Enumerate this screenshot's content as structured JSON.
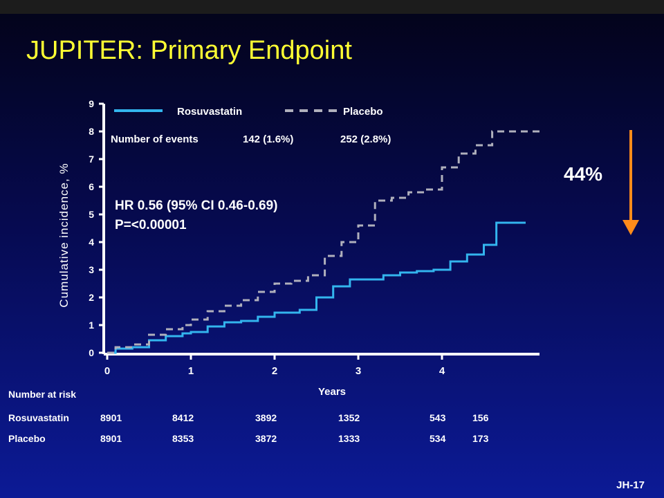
{
  "slide": {
    "title": "JUPITER: Primary Endpoint",
    "slide_id": "JH-17"
  },
  "colors": {
    "rosuvastatin": "#33b5ee",
    "placebo": "#b0b0bc",
    "axis": "#ffffff",
    "title": "#ffff33",
    "arrow": "#ff8c1a"
  },
  "chart_data": {
    "type": "line",
    "title": "",
    "xlabel": "Years",
    "ylabel": "Cumulative incidence, %",
    "xlim": [
      0,
      5
    ],
    "ylim": [
      0,
      9
    ],
    "x_ticks": [
      0,
      1,
      2,
      3,
      4
    ],
    "y_ticks": [
      0,
      1,
      2,
      3,
      4,
      5,
      6,
      7,
      8,
      9
    ],
    "grid": false,
    "legend_position": "top",
    "legend": {
      "rosuvastatin": "Rosuvastatin",
      "placebo": "Placebo"
    },
    "events": {
      "label": "Number of events",
      "rosuvastatin": "142 (1.6%)",
      "placebo": "252 (2.8%)"
    },
    "hr_text": "HR 0.56 (95% CI 0.46-0.69)",
    "p_text": "P=<0.00001",
    "reduction_label": "44%",
    "series": [
      {
        "name": "Rosuvastatin",
        "style": "solid",
        "points": [
          [
            0,
            0
          ],
          [
            0.1,
            0.15
          ],
          [
            0.3,
            0.2
          ],
          [
            0.5,
            0.45
          ],
          [
            0.7,
            0.6
          ],
          [
            0.9,
            0.7
          ],
          [
            1.0,
            0.75
          ],
          [
            1.2,
            0.95
          ],
          [
            1.4,
            1.1
          ],
          [
            1.6,
            1.15
          ],
          [
            1.8,
            1.3
          ],
          [
            2.0,
            1.45
          ],
          [
            2.1,
            1.45
          ],
          [
            2.3,
            1.55
          ],
          [
            2.5,
            2.0
          ],
          [
            2.7,
            2.4
          ],
          [
            2.9,
            2.65
          ],
          [
            3.1,
            2.65
          ],
          [
            3.3,
            2.8
          ],
          [
            3.5,
            2.9
          ],
          [
            3.7,
            2.95
          ],
          [
            3.9,
            3.0
          ],
          [
            4.1,
            3.3
          ],
          [
            4.3,
            3.55
          ],
          [
            4.5,
            3.9
          ],
          [
            4.65,
            4.7
          ],
          [
            5.0,
            4.7
          ]
        ]
      },
      {
        "name": "Placebo",
        "style": "dashed",
        "points": [
          [
            0,
            0
          ],
          [
            0.1,
            0.2
          ],
          [
            0.3,
            0.3
          ],
          [
            0.5,
            0.65
          ],
          [
            0.7,
            0.85
          ],
          [
            0.9,
            1.0
          ],
          [
            1.0,
            1.2
          ],
          [
            1.2,
            1.5
          ],
          [
            1.4,
            1.7
          ],
          [
            1.6,
            1.9
          ],
          [
            1.8,
            2.2
          ],
          [
            2.0,
            2.5
          ],
          [
            2.2,
            2.6
          ],
          [
            2.4,
            2.8
          ],
          [
            2.6,
            3.5
          ],
          [
            2.8,
            4.0
          ],
          [
            3.0,
            4.6
          ],
          [
            3.2,
            5.5
          ],
          [
            3.4,
            5.6
          ],
          [
            3.6,
            5.8
          ],
          [
            3.8,
            5.9
          ],
          [
            4.0,
            6.7
          ],
          [
            4.2,
            7.2
          ],
          [
            4.4,
            7.5
          ],
          [
            4.6,
            8.0
          ],
          [
            5.2,
            8.0
          ]
        ]
      }
    ]
  },
  "risk_table": {
    "label": "Number at risk",
    "rows": [
      {
        "name": "Rosuvastatin",
        "values": [
          "8901",
          "8412",
          "3892",
          "1352",
          "543",
          "156"
        ]
      },
      {
        "name": "Placebo",
        "values": [
          "8901",
          "8353",
          "3872",
          "1333",
          "534",
          "173"
        ]
      }
    ]
  }
}
